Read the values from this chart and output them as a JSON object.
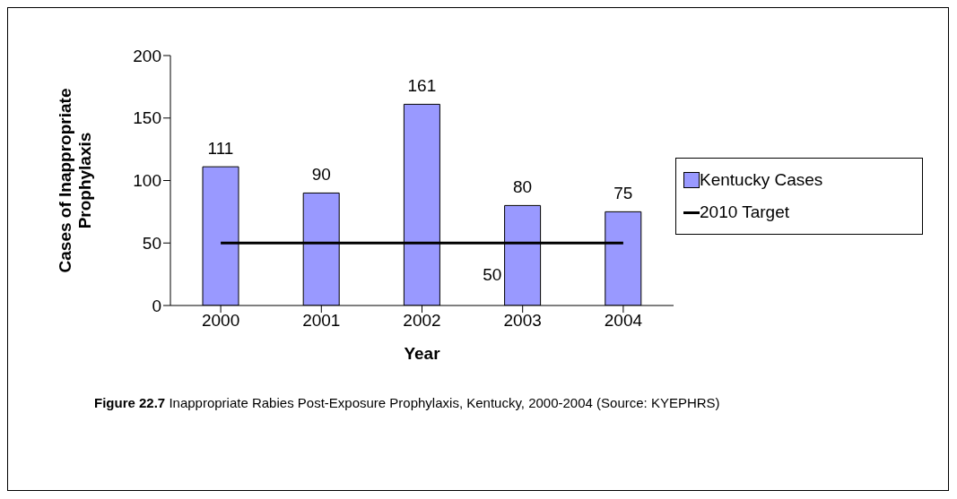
{
  "chart_data": {
    "type": "bar",
    "categories": [
      "2000",
      "2001",
      "2002",
      "2003",
      "2004"
    ],
    "series": [
      {
        "name": "Kentucky Cases",
        "color": "#9999ff",
        "values": [
          111,
          90,
          161,
          80,
          75
        ]
      },
      {
        "name": "2010 Target",
        "type": "line",
        "color": "#000000",
        "values": [
          50,
          50,
          50,
          50,
          50
        ],
        "value_labels": [
          null,
          null,
          null,
          "50",
          null
        ]
      }
    ],
    "data_labels": true,
    "ylabel": "Cases of Inappropriate Prophylaxis",
    "xlabel": "Year",
    "ylim": [
      0,
      200
    ],
    "yticks": [
      0,
      50,
      100,
      150,
      200
    ],
    "grid": false,
    "legend": "right",
    "marker": "none",
    "annotations": [
      "Figure 22.7 Inappropriate Rabies Post-Exposure Prophylaxis, Kentucky, 2000-2004 (Source: KYEPHRS)"
    ]
  }
}
